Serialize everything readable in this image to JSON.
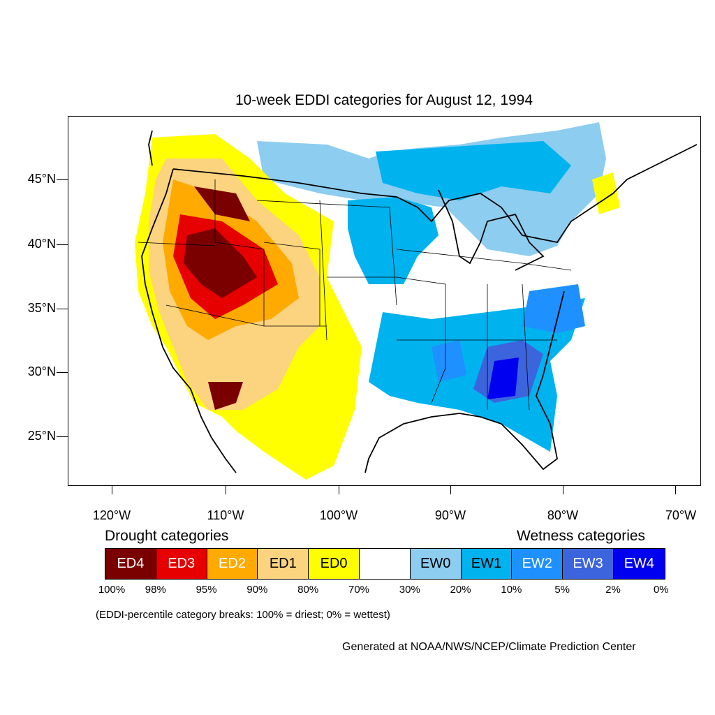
{
  "title": "10-week EDDI categories for August 12, 1994",
  "map": {
    "latitude_labels": [
      "45°N",
      "40°N",
      "35°N",
      "30°N",
      "25°N"
    ],
    "longitude_labels": [
      "120°W",
      "110°W",
      "100°W",
      "90°W",
      "80°W",
      "70°W"
    ]
  },
  "legend": {
    "drought_heading": "Drought categories",
    "wetness_heading": "Wetness categories",
    "categories": [
      {
        "label": "ED4",
        "color": "#7a0000",
        "text_color": "#ffffff"
      },
      {
        "label": "ED3",
        "color": "#e60000",
        "text_color": "#ffffff"
      },
      {
        "label": "ED2",
        "color": "#ffaa00",
        "text_color": "#ffffff"
      },
      {
        "label": "ED1",
        "color": "#fcd37f",
        "text_color": "#000000"
      },
      {
        "label": "ED0",
        "color": "#ffff00",
        "text_color": "#000000"
      },
      {
        "label": "",
        "color": "#ffffff",
        "text_color": "#000000"
      },
      {
        "label": "EW0",
        "color": "#8ccdf0",
        "text_color": "#000000"
      },
      {
        "label": "EW1",
        "color": "#00b2ee",
        "text_color": "#000000"
      },
      {
        "label": "EW2",
        "color": "#1e90ff",
        "text_color": "#ffffff"
      },
      {
        "label": "EW3",
        "color": "#3c64dc",
        "text_color": "#ffffff"
      },
      {
        "label": "EW4",
        "color": "#0000f0",
        "text_color": "#ffffff"
      }
    ],
    "percent_breaks": [
      "100%",
      "98%",
      "95%",
      "90%",
      "80%",
      "70%",
      "30%",
      "20%",
      "10%",
      "5%",
      "2%",
      "0%"
    ],
    "note": "(EDDI-percentile category breaks: 100% = driest; 0% = wettest)"
  },
  "credit": "Generated at NOAA/NWS/NCEP/Climate Prediction Center"
}
